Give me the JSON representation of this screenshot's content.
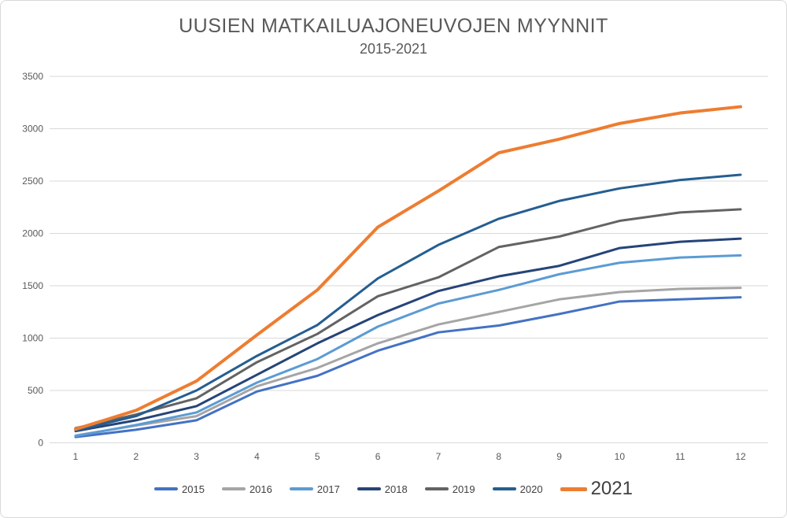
{
  "chart": {
    "title": "UUSIEN MATKAILUAJONEUVOJEN MYYNNIT",
    "subtitle": "2015-2021",
    "text_color": "#595959",
    "gridline_color": "#d9d9d9",
    "background_color": "#ffffff"
  },
  "chart_data": {
    "type": "line",
    "title": "UUSIEN MATKAILUAJONEUVOJEN MYYNNIT",
    "subtitle": "2015-2021",
    "xlabel": "",
    "ylabel": "",
    "x": [
      1,
      2,
      3,
      4,
      5,
      6,
      7,
      8,
      9,
      10,
      11,
      12
    ],
    "xticks": [
      "1",
      "2",
      "3",
      "4",
      "5",
      "6",
      "7",
      "8",
      "9",
      "10",
      "11",
      "12"
    ],
    "yticks": [
      0,
      500,
      1000,
      1500,
      2000,
      2500,
      3000,
      3500
    ],
    "ylim": [
      0,
      3500
    ],
    "grid": "horizontal",
    "legend_position": "bottom",
    "series": [
      {
        "name": "2015",
        "color": "#4472c4",
        "width": 3,
        "values": [
          55,
          125,
          215,
          490,
          640,
          880,
          1055,
          1120,
          1230,
          1350,
          1370,
          1390
        ]
      },
      {
        "name": "2016",
        "color": "#a5a5a5",
        "width": 3,
        "values": [
          70,
          165,
          255,
          540,
          715,
          950,
          1130,
          1250,
          1370,
          1440,
          1470,
          1480
        ]
      },
      {
        "name": "2017",
        "color": "#5b9bd5",
        "width": 3,
        "values": [
          65,
          170,
          290,
          575,
          800,
          1110,
          1330,
          1460,
          1610,
          1720,
          1770,
          1790
        ]
      },
      {
        "name": "2018",
        "color": "#264478",
        "width": 3,
        "values": [
          112,
          215,
          350,
          650,
          950,
          1220,
          1450,
          1590,
          1690,
          1860,
          1920,
          1950
        ]
      },
      {
        "name": "2019",
        "color": "#636363",
        "width": 3,
        "values": [
          140,
          270,
          425,
          770,
          1040,
          1400,
          1580,
          1870,
          1970,
          2120,
          2200,
          2230
        ]
      },
      {
        "name": "2020",
        "color": "#255e91",
        "width": 3,
        "values": [
          118,
          255,
          500,
          830,
          1125,
          1570,
          1890,
          2140,
          2310,
          2430,
          2510,
          2560
        ]
      },
      {
        "name": "2021",
        "color": "#ed7d31",
        "width": 4,
        "values": [
          130,
          310,
          590,
          1030,
          1460,
          2060,
          2405,
          2770,
          2900,
          3050,
          3150,
          3210
        ]
      }
    ]
  }
}
